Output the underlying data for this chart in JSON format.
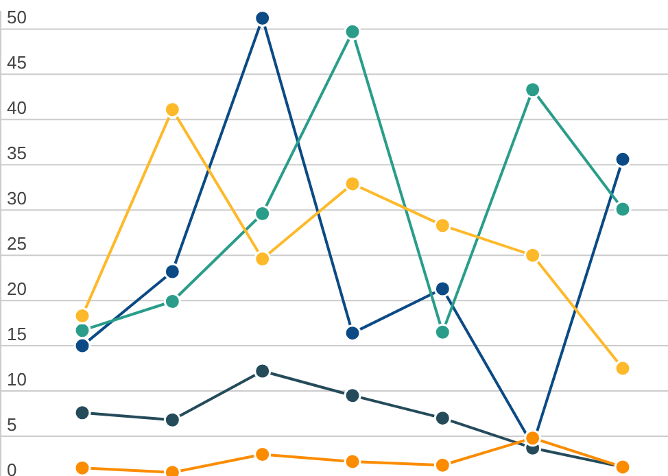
{
  "chart_data": {
    "type": "line",
    "categories": [
      null,
      null,
      null,
      null,
      null,
      null,
      null
    ],
    "series": [
      {
        "color": "#0b4a85",
        "values": [
          15.0,
          23.2,
          51.2,
          16.4,
          21.3,
          4.0,
          35.6
        ]
      },
      {
        "color": "#2a9d8a",
        "values": [
          16.7,
          19.9,
          29.6,
          49.7,
          16.5,
          43.3,
          30.1
        ]
      },
      {
        "color": "#fdb92a",
        "values": [
          18.3,
          41.1,
          24.6,
          32.9,
          28.3,
          25.0,
          12.5
        ]
      },
      {
        "color": "#254b5b",
        "values": [
          7.6,
          6.8,
          12.2,
          9.5,
          7.0,
          3.7,
          1.6
        ]
      },
      {
        "color": "#fb8c00",
        "values": [
          1.5,
          1.0,
          3.0,
          2.2,
          1.8,
          4.8,
          1.6
        ]
      }
    ],
    "ylim": [
      0,
      52
    ],
    "yticks": [
      0,
      5,
      10,
      15,
      20,
      25,
      30,
      35,
      40,
      45,
      50
    ],
    "grid": "y",
    "tick_labels": "y",
    "marker": "circle",
    "line_style": "solid"
  }
}
